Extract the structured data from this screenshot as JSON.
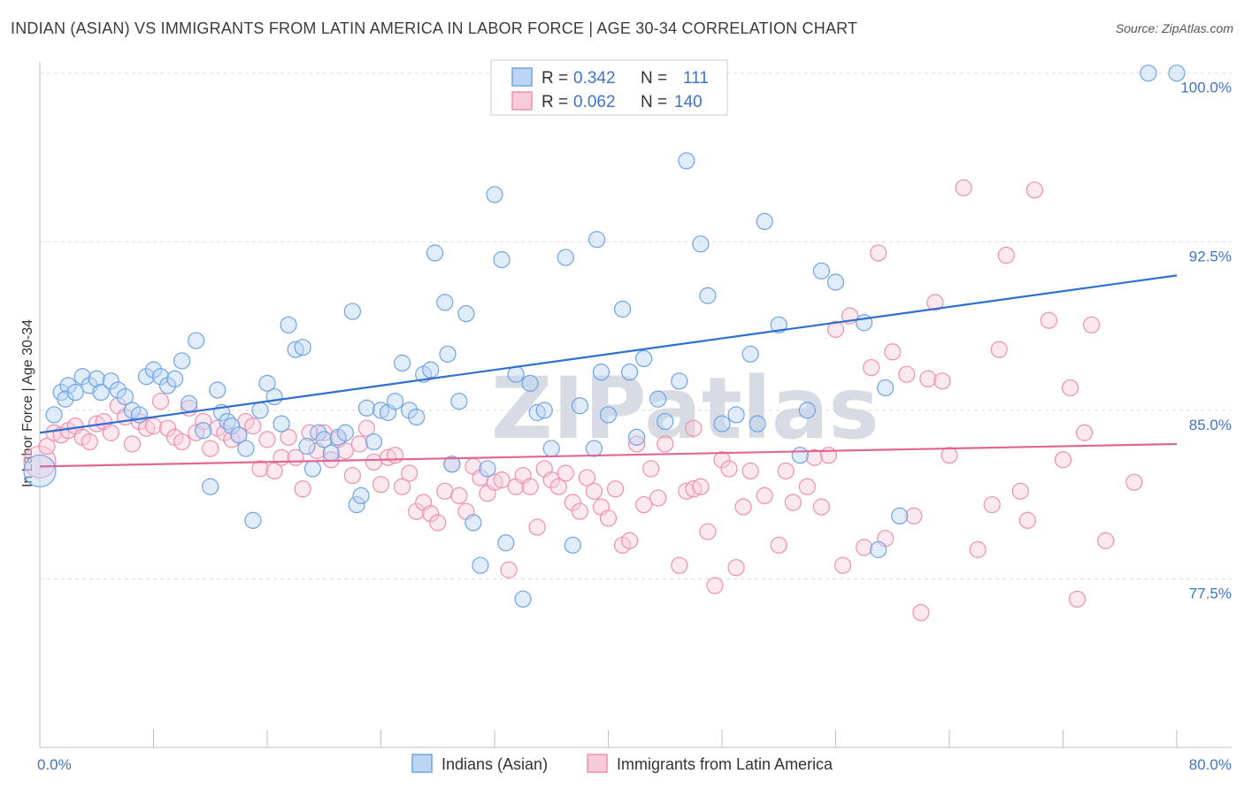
{
  "title": "INDIAN (ASIAN) VS IMMIGRANTS FROM LATIN AMERICA IN LABOR FORCE | AGE 30-34 CORRELATION CHART",
  "source": "Source: ZipAtlas.com",
  "watermark": "ZIPatlas",
  "colors": {
    "blue": "#6fa3e6",
    "pink": "#ef8fb0",
    "blue_line": "#2f6fce",
    "pink_line": "#e06794",
    "tick_label": "#3f73c8"
  },
  "chart_data": {
    "type": "scatter",
    "ylabel": "In Labor Force | Age 30-34",
    "xlim": [
      0,
      80
    ],
    "ylim": [
      70,
      100.5
    ],
    "x_tick_labels": [
      "0.0%",
      "80.0%"
    ],
    "y_ticks": [
      77.5,
      85.0,
      92.5,
      100.0
    ],
    "y_tick_labels": [
      "77.5%",
      "85.0%",
      "92.5%",
      "100.0%"
    ],
    "grid": "horizontal dashed",
    "legend_position": "top-center",
    "legend": [
      {
        "r_label": "R =",
        "r_value": "0.342",
        "n_label": "N =",
        "n_value": "111"
      },
      {
        "r_label": "R =",
        "r_value": "0.062",
        "n_label": "N =",
        "n_value": "140"
      }
    ],
    "series": [
      {
        "name": "Indians (Asian)",
        "color": "#6fa3e6",
        "trend": {
          "x0": 0,
          "y0": 84.0,
          "x1": 80,
          "y1": 91.0
        },
        "points": [
          [
            0.0,
            82.3
          ],
          [
            1.0,
            84.8
          ],
          [
            1.5,
            85.8
          ],
          [
            2.0,
            86.1
          ],
          [
            1.8,
            85.5
          ],
          [
            3.0,
            86.5
          ],
          [
            2.5,
            85.8
          ],
          [
            3.5,
            86.1
          ],
          [
            4.0,
            86.4
          ],
          [
            4.3,
            85.8
          ],
          [
            5.0,
            86.3
          ],
          [
            5.5,
            85.9
          ],
          [
            6.0,
            85.6
          ],
          [
            6.5,
            85.0
          ],
          [
            7.0,
            84.8
          ],
          [
            7.5,
            86.5
          ],
          [
            8.0,
            86.8
          ],
          [
            8.5,
            86.5
          ],
          [
            9.0,
            86.1
          ],
          [
            9.5,
            86.4
          ],
          [
            10.0,
            87.2
          ],
          [
            10.5,
            85.3
          ],
          [
            11.0,
            88.1
          ],
          [
            11.5,
            84.1
          ],
          [
            12.0,
            81.6
          ],
          [
            12.5,
            85.9
          ],
          [
            12.8,
            84.9
          ],
          [
            13.2,
            84.5
          ],
          [
            13.5,
            84.3
          ],
          [
            14.0,
            83.9
          ],
          [
            14.5,
            83.3
          ],
          [
            15.0,
            80.1
          ],
          [
            15.5,
            85.0
          ],
          [
            16.0,
            86.2
          ],
          [
            16.5,
            85.6
          ],
          [
            17.0,
            84.4
          ],
          [
            17.5,
            88.8
          ],
          [
            18.0,
            87.7
          ],
          [
            18.5,
            87.8
          ],
          [
            18.8,
            83.4
          ],
          [
            19.2,
            82.4
          ],
          [
            19.6,
            84.0
          ],
          [
            20.0,
            83.7
          ],
          [
            20.5,
            83.1
          ],
          [
            21.0,
            83.8
          ],
          [
            21.5,
            84.0
          ],
          [
            22.0,
            89.4
          ],
          [
            22.3,
            80.8
          ],
          [
            22.6,
            81.2
          ],
          [
            23.0,
            85.1
          ],
          [
            23.5,
            83.6
          ],
          [
            24.0,
            85.0
          ],
          [
            24.5,
            84.9
          ],
          [
            25.0,
            85.4
          ],
          [
            25.5,
            87.1
          ],
          [
            26.0,
            85.0
          ],
          [
            26.5,
            84.7
          ],
          [
            27.0,
            86.6
          ],
          [
            27.5,
            86.8
          ],
          [
            27.8,
            92.0
          ],
          [
            28.5,
            89.8
          ],
          [
            28.7,
            87.5
          ],
          [
            29.0,
            82.6
          ],
          [
            29.5,
            85.4
          ],
          [
            30.0,
            89.3
          ],
          [
            30.5,
            80.0
          ],
          [
            31.0,
            78.1
          ],
          [
            31.5,
            82.4
          ],
          [
            32.0,
            94.6
          ],
          [
            32.5,
            91.7
          ],
          [
            32.8,
            79.1
          ],
          [
            33.5,
            86.6
          ],
          [
            34.0,
            76.6
          ],
          [
            34.5,
            86.2
          ],
          [
            35.0,
            84.9
          ],
          [
            35.5,
            85.0
          ],
          [
            36.0,
            83.3
          ],
          [
            37.0,
            91.8
          ],
          [
            37.5,
            79.0
          ],
          [
            38.0,
            85.2
          ],
          [
            39.0,
            83.3
          ],
          [
            39.2,
            92.6
          ],
          [
            39.5,
            86.7
          ],
          [
            40.0,
            84.8
          ],
          [
            41.0,
            89.5
          ],
          [
            41.5,
            86.7
          ],
          [
            42.0,
            83.8
          ],
          [
            42.5,
            87.3
          ],
          [
            43.5,
            85.5
          ],
          [
            44.0,
            84.5
          ],
          [
            45.0,
            86.3
          ],
          [
            45.5,
            96.1
          ],
          [
            46.5,
            92.4
          ],
          [
            47.0,
            90.1
          ],
          [
            48.0,
            84.4
          ],
          [
            49.0,
            84.8
          ],
          [
            50.0,
            87.5
          ],
          [
            50.5,
            84.4
          ],
          [
            51.0,
            93.4
          ],
          [
            52.0,
            88.8
          ],
          [
            53.5,
            83.0
          ],
          [
            54.0,
            85.0
          ],
          [
            55.0,
            91.2
          ],
          [
            56.0,
            90.7
          ],
          [
            58.0,
            88.9
          ],
          [
            59.0,
            78.8
          ],
          [
            59.5,
            86.0
          ],
          [
            60.5,
            80.3
          ],
          [
            78.0,
            100.0
          ],
          [
            80.0,
            100.0
          ],
          [
            47.5,
            100.0
          ]
        ]
      },
      {
        "name": "Immigrants from Latin America",
        "color": "#ef8fb0",
        "trend": {
          "x0": 0,
          "y0": 82.5,
          "x1": 80,
          "y1": 83.5
        },
        "points": [
          [
            0.0,
            82.7
          ],
          [
            0.5,
            83.4
          ],
          [
            1.0,
            84.0
          ],
          [
            1.5,
            83.9
          ],
          [
            2.0,
            84.1
          ],
          [
            2.5,
            84.3
          ],
          [
            3.0,
            83.8
          ],
          [
            3.5,
            83.6
          ],
          [
            4.0,
            84.4
          ],
          [
            4.5,
            84.5
          ],
          [
            5.0,
            84.0
          ],
          [
            5.5,
            85.2
          ],
          [
            6.0,
            84.7
          ],
          [
            6.5,
            83.5
          ],
          [
            7.0,
            84.5
          ],
          [
            7.5,
            84.2
          ],
          [
            8.0,
            84.3
          ],
          [
            8.5,
            85.4
          ],
          [
            9.0,
            84.2
          ],
          [
            9.5,
            83.8
          ],
          [
            10.0,
            83.6
          ],
          [
            10.5,
            85.1
          ],
          [
            11.0,
            84.0
          ],
          [
            11.5,
            84.5
          ],
          [
            12.0,
            83.3
          ],
          [
            12.5,
            84.2
          ],
          [
            13.0,
            84.0
          ],
          [
            13.5,
            83.7
          ],
          [
            14.0,
            83.9
          ],
          [
            14.5,
            84.5
          ],
          [
            15.0,
            84.3
          ],
          [
            15.5,
            82.4
          ],
          [
            16.0,
            83.7
          ],
          [
            16.5,
            82.3
          ],
          [
            17.0,
            82.9
          ],
          [
            17.5,
            83.8
          ],
          [
            18.0,
            82.9
          ],
          [
            18.5,
            81.5
          ],
          [
            19.0,
            84.0
          ],
          [
            19.5,
            83.2
          ],
          [
            20.0,
            84.0
          ],
          [
            20.5,
            82.8
          ],
          [
            21.0,
            83.7
          ],
          [
            21.5,
            83.2
          ],
          [
            22.0,
            82.1
          ],
          [
            22.5,
            83.5
          ],
          [
            23.0,
            84.2
          ],
          [
            23.5,
            82.7
          ],
          [
            24.0,
            81.7
          ],
          [
            24.5,
            82.9
          ],
          [
            25.0,
            83.0
          ],
          [
            25.5,
            81.6
          ],
          [
            26.0,
            82.2
          ],
          [
            26.5,
            80.5
          ],
          [
            27.0,
            80.9
          ],
          [
            27.5,
            80.4
          ],
          [
            28.0,
            80.0
          ],
          [
            28.5,
            81.4
          ],
          [
            29.0,
            82.6
          ],
          [
            29.5,
            81.2
          ],
          [
            30.0,
            80.5
          ],
          [
            30.5,
            82.5
          ],
          [
            31.0,
            82.0
          ],
          [
            31.5,
            81.3
          ],
          [
            32.0,
            81.8
          ],
          [
            32.5,
            81.9
          ],
          [
            33.0,
            77.9
          ],
          [
            33.5,
            81.6
          ],
          [
            34.0,
            82.1
          ],
          [
            34.5,
            81.6
          ],
          [
            35.0,
            79.8
          ],
          [
            35.5,
            82.4
          ],
          [
            36.0,
            81.9
          ],
          [
            36.5,
            81.6
          ],
          [
            37.0,
            82.2
          ],
          [
            37.5,
            80.9
          ],
          [
            38.0,
            80.5
          ],
          [
            38.5,
            82.0
          ],
          [
            39.0,
            81.4
          ],
          [
            39.5,
            80.7
          ],
          [
            40.0,
            80.2
          ],
          [
            40.5,
            81.5
          ],
          [
            41.0,
            79.0
          ],
          [
            41.5,
            79.2
          ],
          [
            42.0,
            83.5
          ],
          [
            42.5,
            80.8
          ],
          [
            43.0,
            82.4
          ],
          [
            43.5,
            81.1
          ],
          [
            44.0,
            83.5
          ],
          [
            45.0,
            78.1
          ],
          [
            45.5,
            81.4
          ],
          [
            46.0,
            81.5
          ],
          [
            46.5,
            81.6
          ],
          [
            47.0,
            79.6
          ],
          [
            47.5,
            77.2
          ],
          [
            48.0,
            82.8
          ],
          [
            48.5,
            82.4
          ],
          [
            49.0,
            78.0
          ],
          [
            49.5,
            80.7
          ],
          [
            50.0,
            82.3
          ],
          [
            51.0,
            81.2
          ],
          [
            52.0,
            79.0
          ],
          [
            52.5,
            82.3
          ],
          [
            53.0,
            80.9
          ],
          [
            54.0,
            81.6
          ],
          [
            55.0,
            80.7
          ],
          [
            56.0,
            88.6
          ],
          [
            56.5,
            78.1
          ],
          [
            57.0,
            89.2
          ],
          [
            58.0,
            78.9
          ],
          [
            58.5,
            86.9
          ],
          [
            59.0,
            92.0
          ],
          [
            59.5,
            79.3
          ],
          [
            60.0,
            87.6
          ],
          [
            61.0,
            86.6
          ],
          [
            62.0,
            76.0
          ],
          [
            62.5,
            86.4
          ],
          [
            63.0,
            89.8
          ],
          [
            64.0,
            83.0
          ],
          [
            65.0,
            94.9
          ],
          [
            66.0,
            78.8
          ],
          [
            67.0,
            80.8
          ],
          [
            67.5,
            87.7
          ],
          [
            68.0,
            91.9
          ],
          [
            69.0,
            81.4
          ],
          [
            69.5,
            80.1
          ],
          [
            70.0,
            94.8
          ],
          [
            71.0,
            89.0
          ],
          [
            72.0,
            82.8
          ],
          [
            72.5,
            86.0
          ],
          [
            73.0,
            76.6
          ],
          [
            73.5,
            84.0
          ],
          [
            74.0,
            88.8
          ],
          [
            75.0,
            79.2
          ],
          [
            77.0,
            81.8
          ],
          [
            54.5,
            82.9
          ],
          [
            46.0,
            84.2
          ],
          [
            61.5,
            80.3
          ],
          [
            55.5,
            83.0
          ],
          [
            63.5,
            86.3
          ]
        ]
      }
    ]
  }
}
